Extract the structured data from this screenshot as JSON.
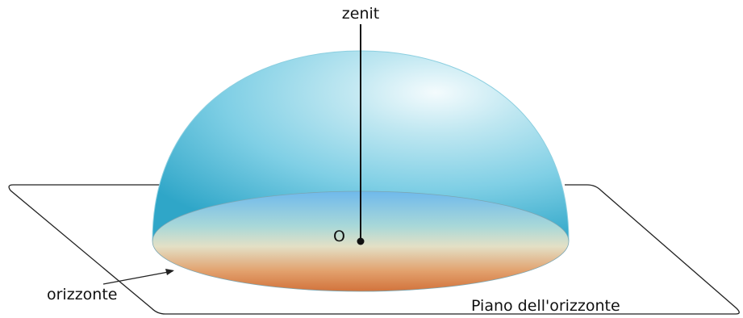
{
  "labels": {
    "zenith": "zenit",
    "observer": "O",
    "horizon": "orizzonte",
    "horizon_plane": "Piano dell'orizzonte"
  },
  "colors": {
    "dome_top": "#e9f7fb",
    "dome_mid": "#7fcfe5",
    "dome_edge": "#3fb0cf",
    "horizon_disk_top": "#6fc0ea",
    "horizon_disk_middle": "#dfe3cf",
    "horizon_disk_bottom": "#d8824a",
    "plane_outline": "#222222",
    "zenith_line": "#111111"
  }
}
